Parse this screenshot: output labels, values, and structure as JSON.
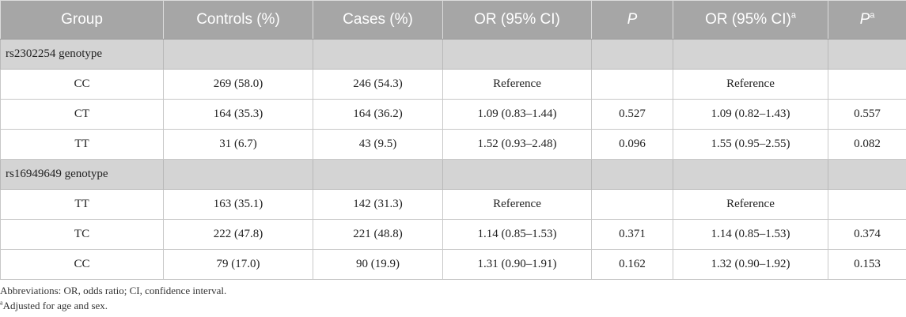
{
  "header": {
    "group": "Group",
    "controls": "Controls (%)",
    "cases": "Cases (%)",
    "or_ci": "OR (95% CI)",
    "p": "P",
    "or_ci_adj": "OR (95% CI)",
    "or_ci_adj_sup": "a",
    "p_adj": "P",
    "p_adj_sup": "a"
  },
  "groups": {
    "g1": {
      "label": "rs2302254 genotype",
      "rows": [
        {
          "group": "CC",
          "controls": "269 (58.0)",
          "cases": "246 (54.3)",
          "or_ci": "Reference",
          "p": "",
          "or_ci_adj": "Reference",
          "p_adj": ""
        },
        {
          "group": "CT",
          "controls": "164 (35.3)",
          "cases": "164 (36.2)",
          "or_ci": "1.09 (0.83–1.44)",
          "p": "0.527",
          "or_ci_adj": "1.09 (0.82–1.43)",
          "p_adj": "0.557"
        },
        {
          "group": "TT",
          "controls": "31 (6.7)",
          "cases": "43 (9.5)",
          "or_ci": "1.52 (0.93–2.48)",
          "p": "0.096",
          "or_ci_adj": "1.55 (0.95–2.55)",
          "p_adj": "0.082"
        }
      ]
    },
    "g2": {
      "label": "rs16949649 genotype",
      "rows": [
        {
          "group": "TT",
          "controls": "163 (35.1)",
          "cases": "142 (31.3)",
          "or_ci": "Reference",
          "p": "",
          "or_ci_adj": "Reference",
          "p_adj": ""
        },
        {
          "group": "TC",
          "controls": "222 (47.8)",
          "cases": "221 (48.8)",
          "or_ci": "1.14 (0.85–1.53)",
          "p": "0.371",
          "or_ci_adj": "1.14 (0.85–1.53)",
          "p_adj": "0.374"
        },
        {
          "group": "CC",
          "controls": "79 (17.0)",
          "cases": "90 (19.9)",
          "or_ci": "1.31 (0.90–1.91)",
          "p": "0.162",
          "or_ci_adj": "1.32 (0.90–1.92)",
          "p_adj": "0.153"
        }
      ]
    }
  },
  "notes": {
    "abbreviations": "Abbreviations: OR, odds ratio; CI, confidence interval.",
    "adjusted_sup": "a",
    "adjusted": "Adjusted for age and sex."
  }
}
